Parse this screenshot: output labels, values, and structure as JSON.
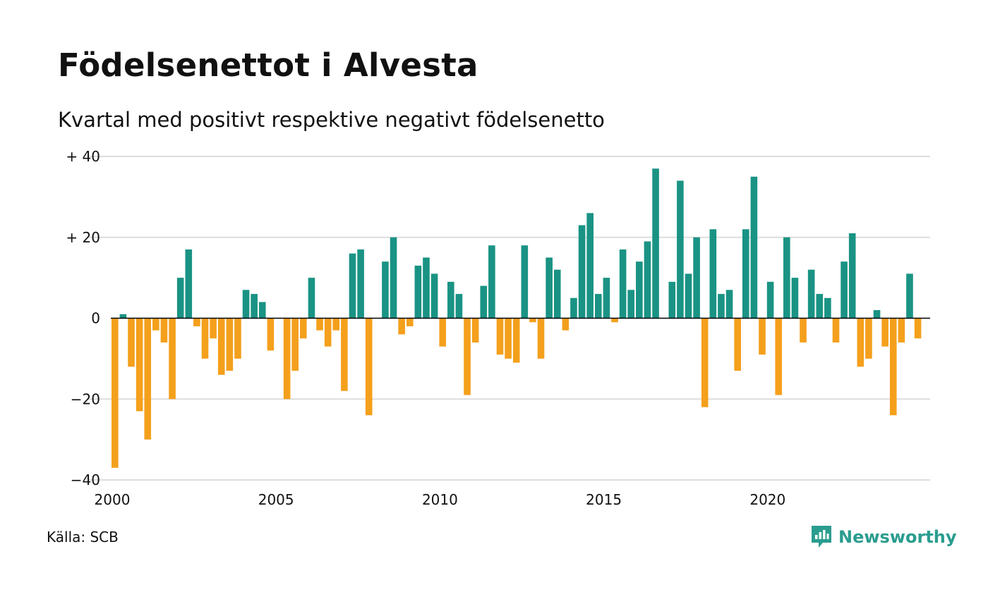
{
  "title": "Födelsenettot i Alvesta",
  "subtitle": "Kvartal med positivt respektive negativt födelsenetto",
  "source": "Källa: SCB",
  "brand": {
    "name": "Newsworthy",
    "icon": "newsworthy-logo-icon"
  },
  "colors": {
    "positive": "#1a9384",
    "negative": "#f4a01c",
    "grid": "#dddddd",
    "zero": "#000000",
    "brand": "#2a9d8f"
  },
  "chart_data": {
    "type": "bar",
    "title": "Födelsenettot i Alvesta",
    "subtitle": "Kvartal med positivt respektive negativt födelsenetto",
    "xlabel": "",
    "ylabel": "",
    "ylim": [
      -40,
      40
    ],
    "xlim": [
      2000,
      2025
    ],
    "grid": true,
    "legend": "none",
    "y_ticks": [
      {
        "value": 40,
        "label": "+ 40"
      },
      {
        "value": 20,
        "label": "+ 20"
      },
      {
        "value": 0,
        "label": "0"
      },
      {
        "value": -20,
        "label": "−20"
      },
      {
        "value": -40,
        "label": "−40"
      }
    ],
    "x_ticks": [
      {
        "value": 2000,
        "label": "2000"
      },
      {
        "value": 2005,
        "label": "2005"
      },
      {
        "value": 2010,
        "label": "2010"
      },
      {
        "value": 2015,
        "label": "2015"
      },
      {
        "value": 2020,
        "label": "2020"
      }
    ],
    "start_year": 2000,
    "values": [
      -37,
      1,
      -12,
      -23,
      -30,
      -3,
      -6,
      -20,
      10,
      17,
      -2,
      -10,
      -5,
      -14,
      -13,
      -10,
      7,
      6,
      4,
      -8,
      0,
      -20,
      -13,
      -5,
      10,
      -3,
      -7,
      -3,
      -18,
      16,
      17,
      -24,
      0,
      14,
      20,
      -4,
      -2,
      13,
      15,
      11,
      -7,
      9,
      6,
      -19,
      -6,
      8,
      18,
      -9,
      -10,
      -11,
      18,
      -1,
      -10,
      15,
      12,
      -3,
      5,
      23,
      26,
      6,
      10,
      -1,
      17,
      7,
      14,
      19,
      37,
      0,
      9,
      34,
      11,
      20,
      -22,
      22,
      6,
      7,
      -13,
      22,
      35,
      -9,
      9,
      -19,
      20,
      10,
      -6,
      12,
      6,
      5,
      -6,
      14,
      21,
      -12,
      -10,
      2,
      -7,
      -24,
      -6,
      11,
      -5
    ]
  }
}
